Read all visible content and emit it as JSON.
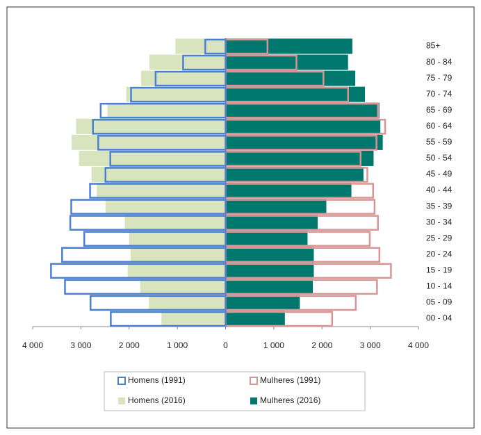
{
  "chart_data": {
    "type": "pyramid",
    "categories": [
      "00 - 04",
      "05 - 09",
      "10 - 14",
      "15 - 19",
      "20 - 24",
      "25 - 29",
      "30 - 34",
      "35 - 39",
      "40 - 44",
      "45 - 49",
      "50 - 54",
      "55 - 59",
      "60 - 64",
      "65 - 69",
      "70 - 74",
      "75 - 79",
      "80 - 84",
      "85+"
    ],
    "series": [
      {
        "name": "Homens (2016)",
        "color": "#d7e4bd",
        "style": "filled",
        "values": [
          -1330,
          -1590,
          -1770,
          -2030,
          -1970,
          -2000,
          -2090,
          -2490,
          -2670,
          -2780,
          -3040,
          -3190,
          -3100,
          -2450,
          -2060,
          -1750,
          -1580,
          -1040
        ]
      },
      {
        "name": "Mulheres (2016)",
        "color": "#00786e",
        "style": "filled",
        "values": [
          1230,
          1540,
          1810,
          1830,
          1830,
          1700,
          1910,
          2090,
          2610,
          2860,
          3070,
          3260,
          3210,
          3190,
          2890,
          2690,
          2540,
          2630
        ]
      },
      {
        "name": "Homens (1991)",
        "color": "#4a7fd4",
        "style": "outline",
        "values": [
          -2380,
          -2800,
          -3330,
          -3620,
          -3390,
          -2930,
          -3220,
          -3200,
          -2810,
          -2490,
          -2390,
          -2640,
          -2750,
          -2590,
          -1960,
          -1450,
          -880,
          -420
        ]
      },
      {
        "name": "Mulheres (1991)",
        "color": "#d99594",
        "style": "outline",
        "values": [
          2210,
          2700,
          3140,
          3430,
          3190,
          2990,
          3160,
          3090,
          3060,
          2940,
          2800,
          3130,
          3310,
          3160,
          2540,
          2030,
          1470,
          870
        ]
      }
    ],
    "xlim": [
      -4000,
      4000
    ],
    "xticks": [
      {
        "value": -4000,
        "label": "4 000"
      },
      {
        "value": -3000,
        "label": "3 000"
      },
      {
        "value": -2000,
        "label": "2 000"
      },
      {
        "value": -1000,
        "label": "1 000"
      },
      0,
      {
        "value": 1000,
        "label": "1 000"
      },
      {
        "value": 2000,
        "label": "2 000"
      },
      {
        "value": 3000,
        "label": "3 000"
      },
      {
        "value": 4000,
        "label": "4 000"
      }
    ],
    "legend": "bottom"
  }
}
